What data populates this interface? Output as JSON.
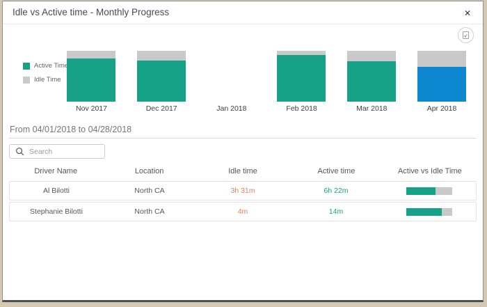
{
  "modal": {
    "title": "Idle vs Active time - Monthly Progress"
  },
  "header": {
    "close_icon": "✕"
  },
  "colors": {
    "active": "#17a288",
    "idle": "#c9c9c9",
    "highlight_active": "#0e87d1",
    "idle_text": "#e0835c",
    "active_text": "#17a288"
  },
  "chart_data": {
    "type": "bar",
    "stacked": true,
    "unit": "percent_of_total",
    "categories": [
      "Nov 2017",
      "Dec 2017",
      "Jan 2018",
      "Feb 2018",
      "Mar 2018",
      "Apr 2018"
    ],
    "series": [
      {
        "name": "Active Time",
        "values": [
          85,
          81,
          null,
          92,
          80,
          69
        ]
      },
      {
        "name": "Idle Time",
        "values": [
          15,
          19,
          null,
          8,
          20,
          31
        ]
      }
    ],
    "highlighted_category": "Apr 2018",
    "legend": [
      {
        "label": "Active Time",
        "color": "#17a288"
      },
      {
        "label": "Idle Time",
        "color": "#c9c9c9"
      }
    ],
    "legend_position": "left",
    "axes_hidden": true
  },
  "filter": {
    "date_range": "From 04/01/2018 to 04/28/2018"
  },
  "search": {
    "placeholder": "Search"
  },
  "table": {
    "columns": [
      "Driver Name",
      "Location",
      "Idle time",
      "Active time",
      "Active vs Idle Time"
    ],
    "rows": [
      {
        "driver_name": "Al Bilotti",
        "location": "North CA",
        "idle_time": "3h 31m",
        "active_time": "6h 22m",
        "active_pct": 64
      },
      {
        "driver_name": "Stephanie Bilotti",
        "location": "North CA",
        "idle_time": "4m",
        "active_time": "14m",
        "active_pct": 78
      }
    ]
  }
}
